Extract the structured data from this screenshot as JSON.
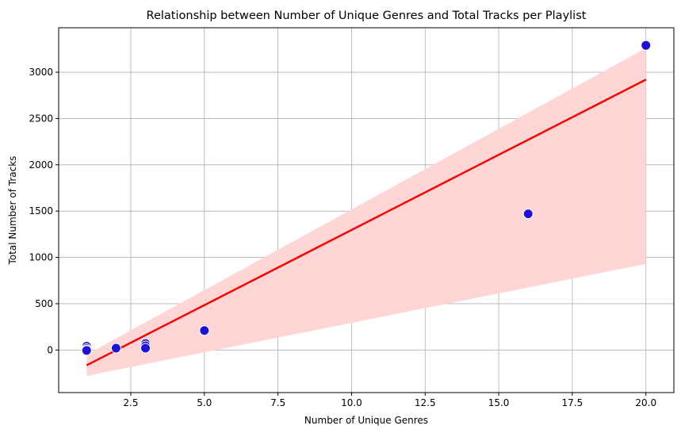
{
  "chart_data": {
    "type": "scatter",
    "title": "Relationship between Number of Unique Genres and Total Tracks per Playlist",
    "xlabel": "Number of Unique Genres",
    "ylabel": "Total Number of Tracks",
    "xlim": [
      0.05,
      20.95
    ],
    "ylim": [
      -460,
      3480
    ],
    "x_ticks": [
      2.5,
      5.0,
      7.5,
      10.0,
      12.5,
      15.0,
      17.5,
      20.0
    ],
    "x_tick_labels": [
      "2.5",
      "5.0",
      "7.5",
      "10.0",
      "12.5",
      "15.0",
      "17.5",
      "20.0"
    ],
    "y_ticks": [
      0,
      500,
      1000,
      1500,
      2000,
      2500,
      3000
    ],
    "y_tick_labels": [
      "0",
      "500",
      "1000",
      "1500",
      "2000",
      "2500",
      "3000"
    ],
    "grid": true,
    "points": {
      "x": [
        1,
        1,
        1,
        1,
        2,
        3,
        3,
        3,
        5,
        16,
        20
      ],
      "y": [
        40,
        15,
        0,
        -5,
        20,
        70,
        45,
        20,
        210,
        1470,
        3290
      ],
      "color": "#1f10d8",
      "edge_color": "#ffffff"
    },
    "regression": {
      "x": [
        1,
        20
      ],
      "y": [
        -165,
        2920
      ],
      "color": "#ff0000",
      "ci_lower": [
        -280,
        930
      ],
      "ci_upper": [
        -50,
        3260
      ],
      "ci_color": "#ffd6d6"
    }
  }
}
